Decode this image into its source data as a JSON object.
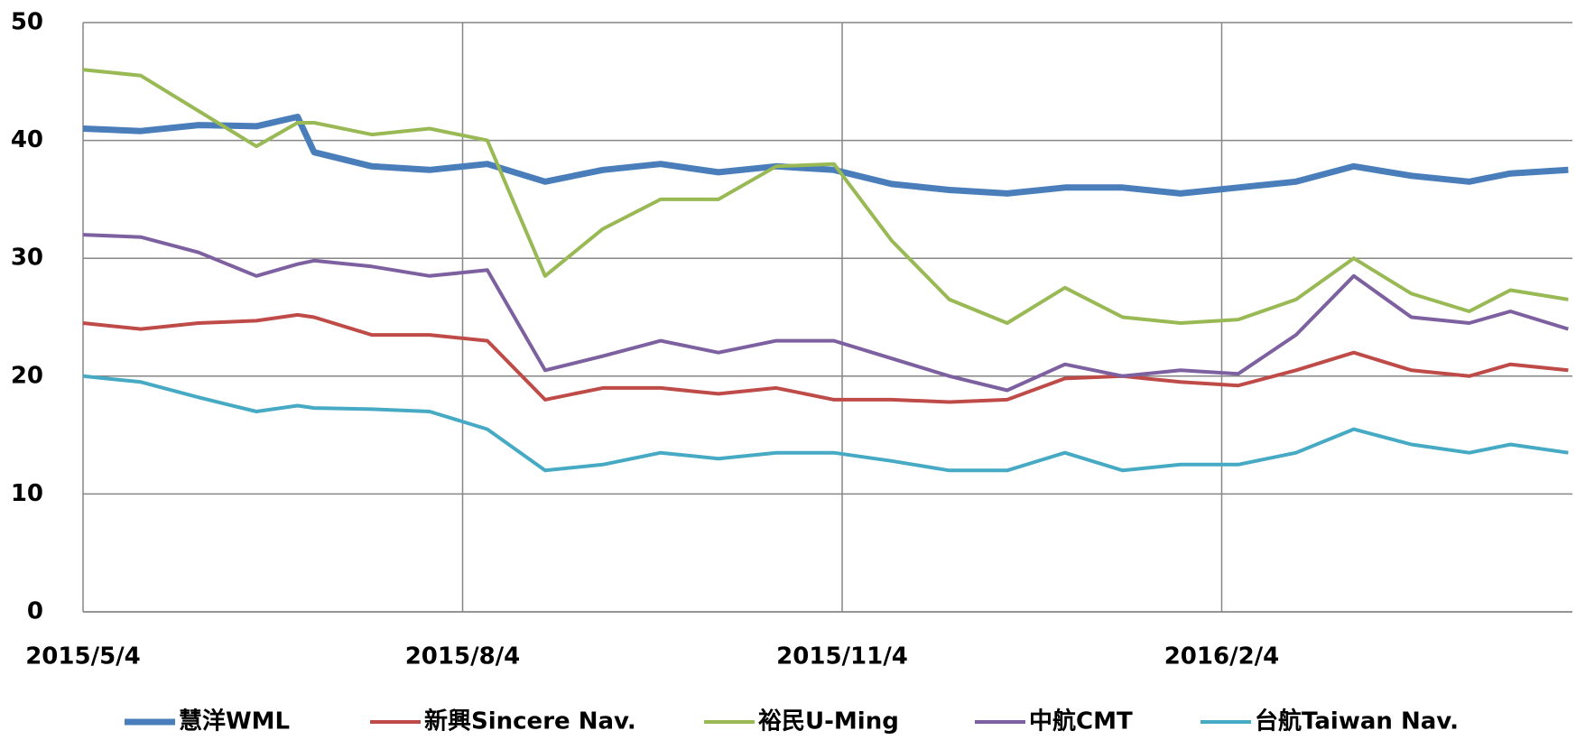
{
  "chart_data": {
    "type": "line",
    "x": [
      "2015/5/4",
      "2015/5/18",
      "2015/6/1",
      "2015/6/15",
      "2015/6/25",
      "2015/6/29",
      "2015/7/13",
      "2015/7/27",
      "2015/8/10",
      "2015/8/24",
      "2015/9/7",
      "2015/9/21",
      "2015/10/5",
      "2015/10/19",
      "2015/11/2",
      "2015/11/16",
      "2015/11/30",
      "2015/12/14",
      "2015/12/28",
      "2016/1/11",
      "2016/1/25",
      "2016/2/8",
      "2016/2/22",
      "2016/3/7",
      "2016/3/21",
      "2016/4/4",
      "2016/4/14",
      "2016/4/28"
    ],
    "series": [
      {
        "name": "慧洋WML",
        "color": "#4a7ebb",
        "values": [
          41,
          40.8,
          41.3,
          41.2,
          42,
          39,
          37.8,
          37.5,
          38,
          36.5,
          37.5,
          38,
          37.3,
          37.8,
          37.5,
          36.3,
          35.8,
          35.5,
          36,
          36,
          35.5,
          36,
          36.5,
          37.8,
          37,
          36.5,
          37.2,
          37.5
        ]
      },
      {
        "name": "新興Sincere Nav.",
        "color": "#be4b48",
        "values": [
          24.5,
          24,
          24.5,
          24.7,
          25.2,
          25,
          23.5,
          23.5,
          23,
          18,
          19,
          19,
          18.5,
          19,
          18,
          18,
          17.8,
          18,
          19.8,
          20,
          19.5,
          19.2,
          20.5,
          22,
          20.5,
          20,
          21,
          20.5
        ]
      },
      {
        "name": "裕民U-Ming",
        "color": "#98b954",
        "values": [
          46,
          45.5,
          42.5,
          39.5,
          41.5,
          41.5,
          40.5,
          41,
          40,
          28.5,
          32.5,
          35,
          35,
          37.8,
          38,
          31.5,
          26.5,
          24.5,
          27.5,
          25,
          24.5,
          24.8,
          26.5,
          30,
          27,
          25.5,
          27.3,
          26.5
        ]
      },
      {
        "name": "中航CMT",
        "color": "#7d60a0",
        "values": [
          32,
          31.8,
          30.5,
          28.5,
          29.5,
          29.8,
          29.3,
          28.5,
          29,
          20.5,
          21.7,
          23,
          22,
          23,
          23,
          21.5,
          20,
          18.8,
          21,
          20,
          20.5,
          20.2,
          23.5,
          28.5,
          25,
          24.5,
          25.5,
          24
        ]
      },
      {
        "name": "台航Taiwan Nav.",
        "color": "#46aac5",
        "values": [
          20,
          19.5,
          18.2,
          17,
          17.5,
          17.3,
          17.2,
          17,
          15.5,
          12,
          12.5,
          13.5,
          13,
          13.5,
          13.5,
          12.8,
          12,
          12,
          13.5,
          12,
          12.5,
          12.5,
          13.5,
          15.5,
          14.2,
          13.5,
          14.2,
          13.5
        ]
      }
    ],
    "xlim": [
      "2015/5/4",
      "2016/4/29"
    ],
    "xticks": [
      "2015/5/4",
      "2015/8/4",
      "2015/11/4",
      "2016/2/4"
    ],
    "ylim": [
      0,
      50
    ],
    "yticks": [
      0,
      10,
      20,
      30,
      40,
      50
    ],
    "grid": true
  }
}
